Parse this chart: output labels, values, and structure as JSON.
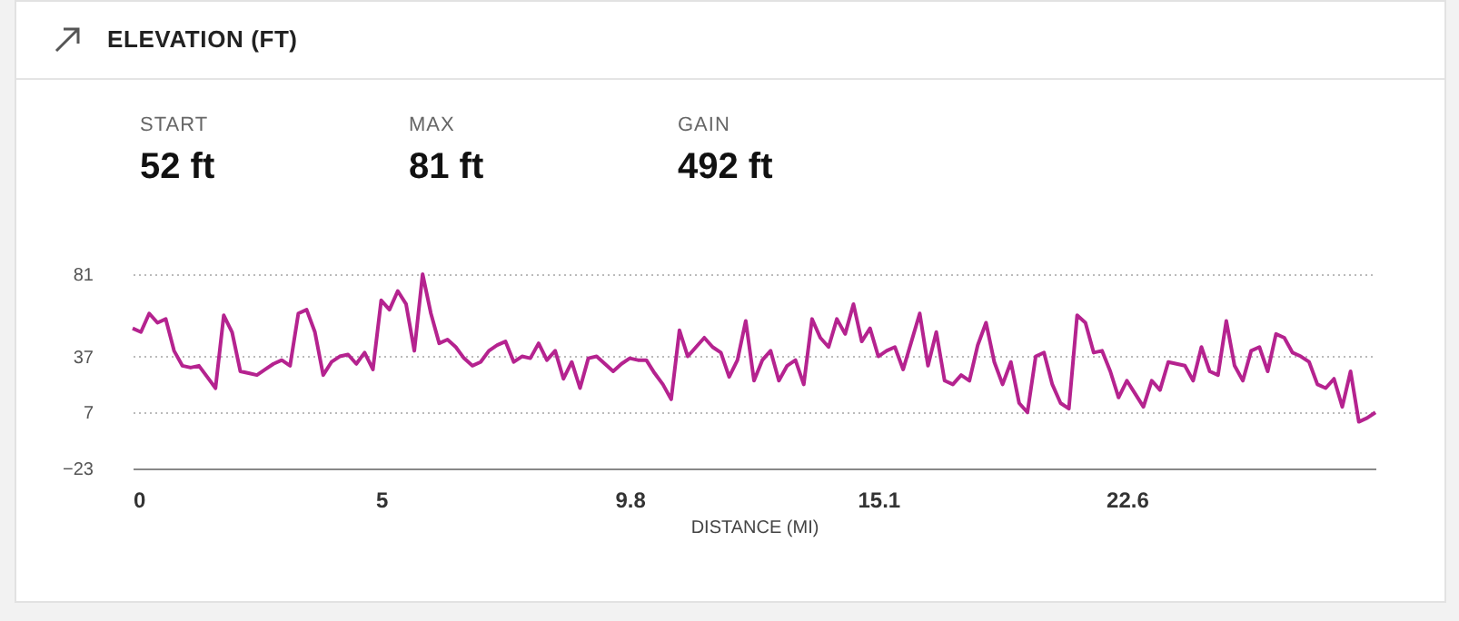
{
  "chart_data": {
    "type": "line",
    "title": "ELEVATION (FT)",
    "annotations": [
      "START",
      "52 ft",
      "MAX",
      "81 ft",
      "GAIN",
      "492 ft"
    ],
    "xlabel": "DISTANCE (MI)",
    "categories": [
      "0",
      null,
      null,
      null,
      null,
      null,
      null,
      null,
      null,
      null,
      null,
      null,
      null,
      null,
      null,
      null,
      null,
      null,
      null,
      null,
      null,
      null,
      null,
      null,
      null,
      null,
      null,
      null,
      null,
      null,
      "5",
      null,
      null,
      null,
      null,
      null,
      null,
      null,
      null,
      null,
      null,
      null,
      null,
      null,
      null,
      null,
      null,
      null,
      null,
      null,
      null,
      null,
      null,
      null,
      null,
      null,
      null,
      null,
      null,
      null,
      "9.8",
      null,
      null,
      null,
      null,
      null,
      null,
      null,
      null,
      null,
      null,
      null,
      null,
      null,
      null,
      null,
      null,
      null,
      null,
      null,
      null,
      null,
      null,
      null,
      null,
      null,
      null,
      null,
      null,
      null,
      "15.1",
      null,
      null,
      null,
      null,
      null,
      null,
      null,
      null,
      null,
      null,
      null,
      null,
      null,
      null,
      null,
      null,
      null,
      null,
      null,
      null,
      null,
      null,
      null,
      null,
      null,
      null,
      null,
      null,
      null,
      "22.6",
      null,
      null,
      null,
      null,
      null,
      null,
      null,
      null,
      null,
      null,
      null,
      null,
      null,
      null,
      null,
      null,
      null,
      null,
      null,
      null,
      null,
      null,
      null,
      null,
      null,
      null,
      null,
      null,
      null,
      null
    ],
    "values": [
      52,
      50,
      60,
      55,
      57,
      40,
      32,
      31,
      32,
      26,
      20,
      59,
      50,
      29,
      28,
      27,
      30,
      33,
      35,
      32,
      60,
      62,
      50,
      27,
      34,
      37,
      38,
      33,
      39,
      30,
      67,
      62,
      72,
      65,
      40,
      81,
      60,
      44,
      46,
      42,
      36,
      32,
      34,
      40,
      43,
      45,
      34,
      37,
      36,
      44,
      35,
      40,
      25,
      34,
      20,
      36,
      37,
      33,
      29,
      33,
      36,
      35,
      35,
      28,
      22,
      14,
      51,
      37,
      42,
      47,
      42,
      39,
      26,
      35,
      56,
      24,
      35,
      40,
      24,
      32,
      35,
      22,
      57,
      47,
      42,
      57,
      49,
      65,
      45,
      52,
      37,
      40,
      42,
      30,
      45,
      60,
      32,
      50,
      24,
      22,
      27,
      24,
      43,
      55,
      34,
      22,
      34,
      12,
      7,
      37,
      39,
      22,
      12,
      9,
      59,
      55,
      39,
      40,
      29,
      15,
      24,
      17,
      10,
      24,
      19,
      34,
      33,
      32,
      24,
      42,
      29,
      27,
      56,
      32,
      24,
      40,
      42,
      29,
      49,
      47,
      39,
      37,
      34,
      22,
      20,
      25,
      10,
      29,
      2,
      4,
      7
    ],
    "color": "#b5238f",
    "ylim": [
      -23,
      81
    ],
    "yticks": [
      -23,
      7,
      37,
      81
    ],
    "grid": "y"
  }
}
